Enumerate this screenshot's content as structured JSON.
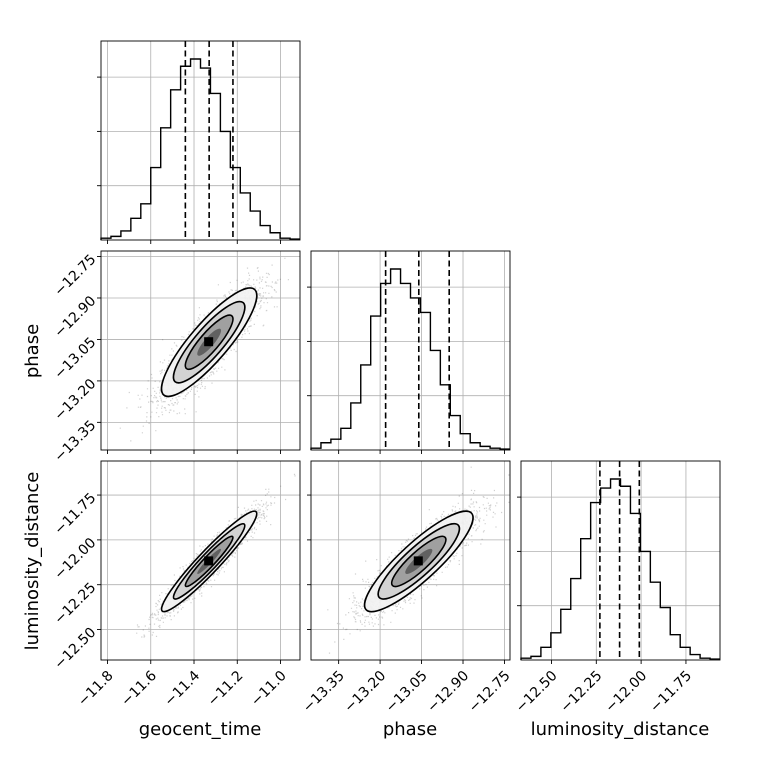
{
  "chart_data": {
    "type": "corner",
    "parameters": [
      "geocent_time",
      "phase",
      "luminosity_distance"
    ],
    "axis_ranges": {
      "geocent_time": [
        -11.83,
        -10.91
      ],
      "phase": [
        -13.45,
        -12.73
      ],
      "luminosity_distance": [
        -12.67,
        -11.56
      ]
    },
    "ticks": {
      "geocent_time": [
        -11.8,
        -11.6,
        -11.4,
        -11.2,
        -11.0
      ],
      "phase": [
        -13.35,
        -13.2,
        -13.05,
        -12.9,
        -12.75
      ],
      "luminosity_distance": [
        -12.5,
        -12.25,
        -12.0,
        -11.75
      ]
    },
    "tick_labels": {
      "geocent_time": [
        "−11.8",
        "−11.6",
        "−11.4",
        "−11.2",
        "−11.0"
      ],
      "phase": [
        "−13.35",
        "−13.20",
        "−13.05",
        "−12.90",
        "−12.75"
      ],
      "luminosity_distance": [
        "−12.50",
        "−12.25",
        "−12.00",
        "−11.75"
      ]
    },
    "histograms": {
      "geocent_time": {
        "bin_start": -11.83,
        "bin_width": 0.046,
        "counts": [
          0.01,
          0.02,
          0.05,
          0.12,
          0.2,
          0.4,
          0.62,
          0.83,
          0.96,
          1.0,
          0.95,
          0.81,
          0.6,
          0.4,
          0.26,
          0.16,
          0.08,
          0.04,
          0.01,
          0.005
        ],
        "quantiles": [
          -11.44,
          -11.33,
          -11.22
        ]
      },
      "phase": {
        "bin_start": -13.45,
        "bin_width": 0.036,
        "counts": [
          0.01,
          0.04,
          0.06,
          0.12,
          0.26,
          0.47,
          0.74,
          0.92,
          1.0,
          0.92,
          0.84,
          0.76,
          0.55,
          0.36,
          0.19,
          0.09,
          0.04,
          0.02,
          0.01,
          0.005
        ],
        "quantiles": [
          -13.18,
          -13.06,
          -12.95
        ]
      },
      "luminosity_distance": {
        "bin_start": -12.67,
        "bin_width": 0.0555,
        "counts": [
          0.01,
          0.02,
          0.07,
          0.15,
          0.28,
          0.45,
          0.67,
          0.87,
          0.95,
          1.0,
          0.96,
          0.81,
          0.6,
          0.43,
          0.29,
          0.14,
          0.07,
          0.03,
          0.01,
          0.005
        ],
        "quantiles": [
          -12.23,
          -12.12,
          -12.01
        ]
      }
    },
    "pairs": [
      {
        "x": "geocent_time",
        "y": "phase",
        "mean": [
          -11.33,
          -13.06
        ],
        "sd": [
          0.11,
          0.098
        ],
        "rho": 0.86
      },
      {
        "x": "geocent_time",
        "y": "luminosity_distance",
        "mean": [
          -11.33,
          -12.12
        ],
        "sd": [
          0.11,
          0.14
        ],
        "rho": 0.95
      },
      {
        "x": "phase",
        "y": "luminosity_distance",
        "mean": [
          -13.06,
          -12.12
        ],
        "sd": [
          0.098,
          0.14
        ],
        "rho": 0.87
      }
    ],
    "contour_levels": [
      0.118,
      0.393,
      0.675,
      0.865
    ],
    "grid": true,
    "title": ""
  }
}
